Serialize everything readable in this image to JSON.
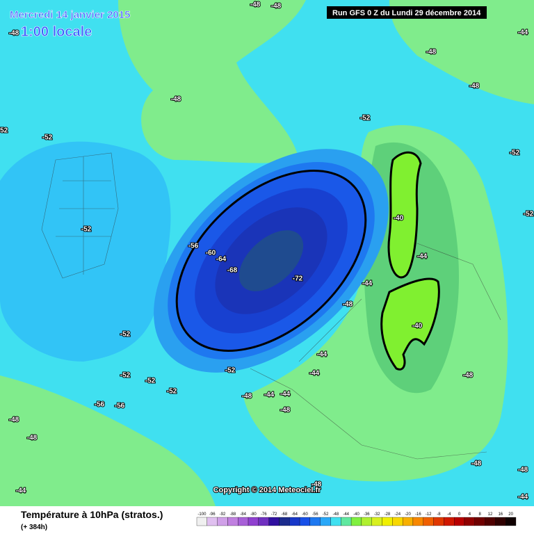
{
  "header": {
    "date": "Mercredi 14 janvier 2015",
    "time": "1:00 locale",
    "run": "Run GFS 0 Z du Lundi 29 décembre 2014"
  },
  "copyright": "Copyright © 2014 Meteociel.fr",
  "footer": {
    "title": "Température à 10hPa (stratos.)",
    "lead": "(+ 384h)"
  },
  "colorbar": {
    "ticks": [
      -100,
      -96,
      -92,
      -88,
      -84,
      -80,
      -76,
      -72,
      -68,
      -64,
      -60,
      -56,
      -52,
      -48,
      -44,
      -40,
      -36,
      -32,
      -28,
      -24,
      -20,
      -16,
      -12,
      -8,
      -4,
      0,
      4,
      8,
      12,
      16,
      20
    ],
    "colors": [
      "#f0f0f0",
      "#e0c0f0",
      "#d0a0e8",
      "#c080e0",
      "#a860d8",
      "#9040d0",
      "#7030c0",
      "#3010a0",
      "#1c2c8c",
      "#1838c8",
      "#1850e8",
      "#1e78f0",
      "#2aa8f8",
      "#40e0f0",
      "#60e8a0",
      "#80f040",
      "#b0f030",
      "#d8f020",
      "#f0f000",
      "#f8d800",
      "#f8b000",
      "#f88800",
      "#f06000",
      "#e03800",
      "#d01800",
      "#b80000",
      "#900000",
      "#700000",
      "#500000",
      "#300000",
      "#100000"
    ]
  },
  "contour_labels": [
    "-48",
    "-48",
    "-48",
    "-52",
    "-52",
    "-48",
    "-48",
    "-48",
    "-44",
    "-52",
    "-52",
    "-52",
    "-52",
    "-56",
    "-60",
    "-64",
    "-68",
    "-72",
    "-40",
    "-44",
    "-44",
    "-48",
    "-40",
    "-52",
    "-44",
    "-52",
    "-52",
    "-52",
    "-52",
    "-44",
    "-48",
    "-44",
    "-44",
    "-48",
    "-48",
    "-56",
    "-56",
    "-48",
    "-48",
    "-48",
    "-48",
    "-48",
    "-44",
    "-44"
  ]
}
